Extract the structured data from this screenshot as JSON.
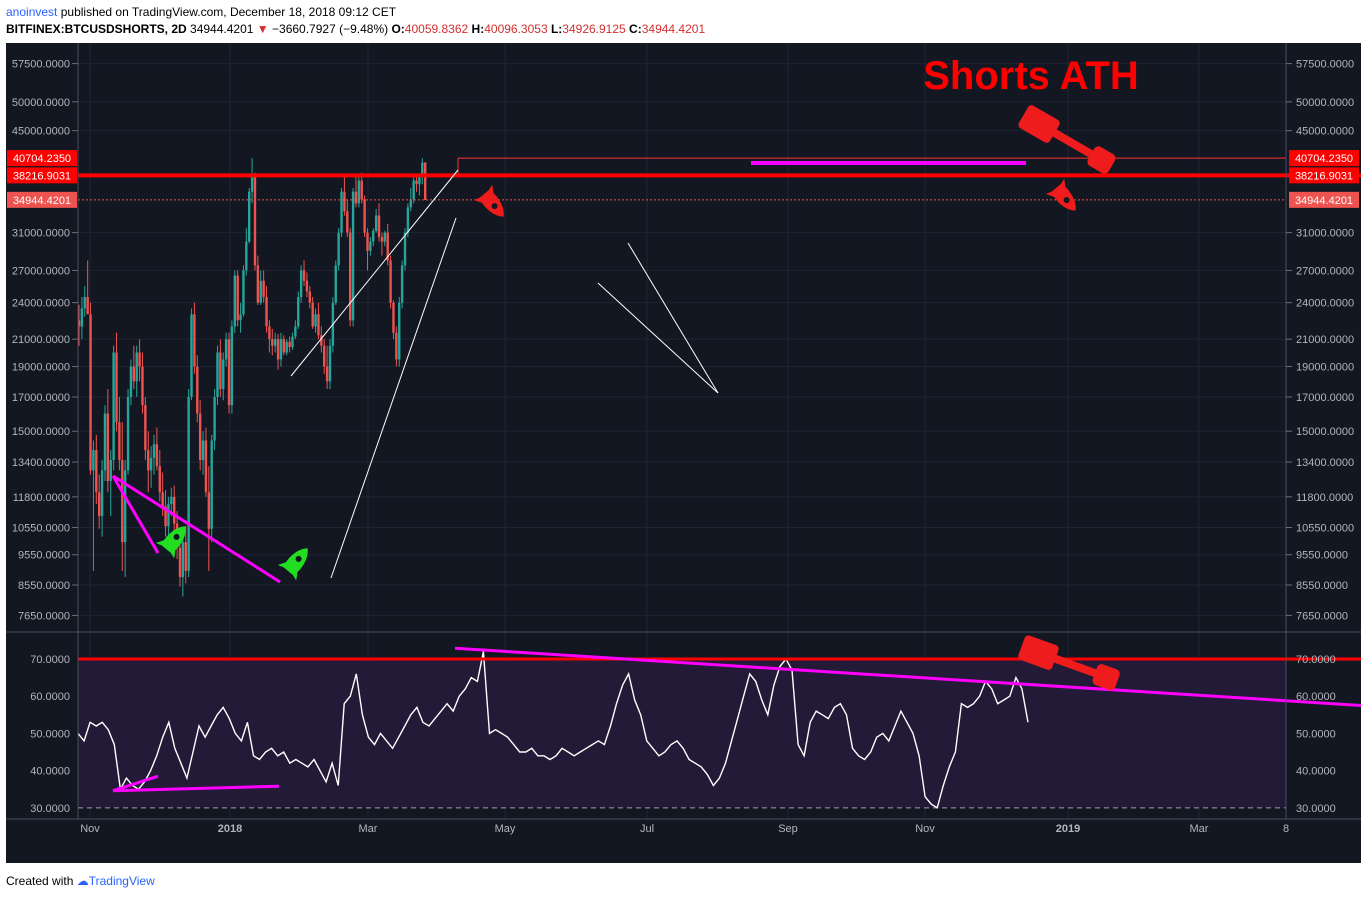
{
  "header": {
    "author": "anoinvest",
    "published": "published on TradingView.com, December 18, 2018 09:12 CET",
    "symbol": "BITFINEX:BTCUSDSHORTS, 2D",
    "last": "34944.4201",
    "change": "−3660.7927 (−9.48%)",
    "open_label": "O:",
    "open": "40059.8362",
    "high_label": "H:",
    "high": "40096.3053",
    "low_label": "L:",
    "low": "34926.9125",
    "close_label": "C:",
    "close": "34944.4201"
  },
  "footer": {
    "created_with": "Created with",
    "brand": "TradingView"
  },
  "colors": {
    "background": "#131722",
    "rsi_band": "#221a36",
    "up": "#26a69a",
    "down": "#ef5350",
    "annotation_red": "#ff0000",
    "annotation_magenta": "#ff00ff",
    "rocket_green": "#22dd22",
    "rsi_line": "#ffffff"
  },
  "chart_data": [
    {
      "type": "candlestick",
      "title": "BTCUSDSHORTS 2D",
      "y_axis_ticks": [
        7650,
        8550,
        9550,
        10550,
        11800,
        13400,
        15000,
        17000,
        19000,
        21000,
        24000,
        27000,
        31000,
        34944.4201,
        38216.9031,
        40704.235,
        45000,
        50000,
        57500
      ],
      "y_tick_labels": [
        "7650.0000",
        "8550.0000",
        "9550.0000",
        "10550.0000",
        "11800.0000",
        "13400.0000",
        "15000.0000",
        "17000.0000",
        "19000.0000",
        "21000.0000",
        "24000.0000",
        "27000.0000",
        "31000.0000",
        "34944.4201",
        "38216.9031",
        "40704.2350",
        "45000.0000",
        "50000.0000",
        "57500.0000"
      ],
      "y_scale": "log",
      "ylim": [
        7200,
        62000
      ],
      "x_tick_labels": [
        "Nov",
        "2018",
        "Mar",
        "May",
        "Jul",
        "Sep",
        "Nov",
        "2019",
        "Mar",
        "8"
      ],
      "series": [
        {
          "values": [
            [
              22500,
              23800,
              20500,
              22000
            ],
            [
              22000,
              24500,
              21000,
              23500
            ],
            [
              23500,
              25500,
              22800,
              24500
            ],
            [
              24500,
              28000,
              23000,
              23000
            ],
            [
              23000,
              24000,
              12800,
              13000
            ],
            [
              13000,
              14500,
              9000,
              14000
            ],
            [
              14000,
              14800,
              11500,
              12000
            ],
            [
              12000,
              12800,
              10500,
              11000
            ],
            [
              11000,
              13500,
              10200,
              13000
            ],
            [
              13000,
              16500,
              12500,
              16000
            ],
            [
              16000,
              17500,
              12000,
              12500
            ],
            [
              12500,
              14000,
              11000,
              13500
            ],
            [
              13500,
              20500,
              13000,
              20000
            ],
            [
              20000,
              21500,
              15000,
              15500
            ],
            [
              15500,
              17000,
              13000,
              13500
            ],
            [
              13500,
              15500,
              9000,
              10000
            ],
            [
              10000,
              13500,
              8800,
              13000
            ],
            [
              13000,
              17500,
              12800,
              17000
            ],
            [
              17000,
              19500,
              16500,
              19000
            ],
            [
              19000,
              20500,
              17500,
              18000
            ],
            [
              18000,
              20500,
              17000,
              20000
            ],
            [
              20000,
              21000,
              18000,
              19000
            ],
            [
              19000,
              20000,
              16000,
              16500
            ],
            [
              16500,
              17000,
              13500,
              14000
            ],
            [
              14000,
              15000,
              12000,
              13000
            ],
            [
              13000,
              14200,
              12200,
              13600
            ],
            [
              13600,
              14800,
              12800,
              14300
            ],
            [
              14300,
              15200,
              13000,
              13200
            ],
            [
              13200,
              14000,
              11600,
              12000
            ],
            [
              12000,
              12900,
              11000,
              11400
            ],
            [
              11400,
              12100,
              10200,
              10600
            ],
            [
              10600,
              11800,
              10000,
              11500
            ],
            [
              11500,
              12200,
              11000,
              11800
            ],
            [
              11800,
              12300,
              10400,
              10700
            ],
            [
              10700,
              11200,
              9400,
              9800
            ],
            [
              9800,
              10500,
              8500,
              8800
            ],
            [
              8800,
              10200,
              8200,
              10000
            ],
            [
              10000,
              10600,
              8600,
              9000
            ],
            [
              9000,
              17500,
              8800,
              17000
            ],
            [
              17000,
              23500,
              16800,
              23000
            ],
            [
              23000,
              24000,
              18500,
              19000
            ],
            [
              19000,
              19800,
              15500,
              16000
            ],
            [
              16000,
              16800,
              13000,
              13500
            ],
            [
              13500,
              15000,
              12800,
              14500
            ],
            [
              14500,
              15200,
              11800,
              12000
            ],
            [
              12000,
              13200,
              9000,
              10500
            ],
            [
              10500,
              14800,
              10000,
              14500
            ],
            [
              14500,
              17500,
              14000,
              17000
            ],
            [
              17000,
              20500,
              16500,
              20000
            ],
            [
              20000,
              21000,
              17000,
              17500
            ],
            [
              17500,
              20000,
              16800,
              19500
            ],
            [
              19500,
              21500,
              19000,
              21000
            ],
            [
              21000,
              21500,
              16000,
              16500
            ],
            [
              16500,
              22500,
              16000,
              22000
            ],
            [
              22000,
              27000,
              21500,
              26500
            ],
            [
              26500,
              27000,
              22000,
              22500
            ],
            [
              22500,
              24000,
              21500,
              23000
            ],
            [
              23000,
              27500,
              22800,
              27000
            ],
            [
              27000,
              31500,
              26500,
              30000
            ],
            [
              30000,
              36500,
              29800,
              36000
            ],
            [
              36000,
              40700,
              34500,
              38216
            ],
            [
              38216,
              38600,
              27000,
              27500
            ],
            [
              27500,
              28500,
              23800,
              24000
            ],
            [
              24000,
              27000,
              23800,
              26000
            ],
            [
              26000,
              27000,
              24000,
              24500
            ],
            [
              24500,
              25500,
              21500,
              22000
            ],
            [
              22000,
              22500,
              20000,
              21000
            ],
            [
              21000,
              21800,
              19800,
              20500
            ],
            [
              20500,
              21500,
              20000,
              21000
            ],
            [
              21000,
              21400,
              18800,
              19500
            ],
            [
              19500,
              21500,
              19000,
              21000
            ],
            [
              21000,
              21300,
              19800,
              20000
            ],
            [
              20000,
              21000,
              19800,
              20800
            ],
            [
              20800,
              21200,
              20000,
              20400
            ],
            [
              20400,
              21500,
              20200,
              21200
            ],
            [
              21200,
              22500,
              21000,
              22000
            ],
            [
              22000,
              25000,
              21800,
              24500
            ],
            [
              24500,
              27500,
              24000,
              27000
            ],
            [
              27000,
              28000,
              25500,
              26000
            ],
            [
              26000,
              26800,
              24500,
              25000
            ],
            [
              25000,
              25500,
              23500,
              24000
            ],
            [
              24000,
              24500,
              21800,
              22000
            ],
            [
              22000,
              23500,
              21500,
              23000
            ],
            [
              23000,
              24000,
              21000,
              21300
            ],
            [
              21300,
              22000,
              20000,
              20500
            ],
            [
              20500,
              21000,
              18500,
              19000
            ],
            [
              19000,
              20500,
              17500,
              18000
            ],
            [
              18000,
              21000,
              17500,
              20500
            ],
            [
              20500,
              24500,
              20000,
              24000
            ],
            [
              24000,
              28000,
              23800,
              27500
            ],
            [
              27500,
              31500,
              27000,
              31000
            ],
            [
              31000,
              36500,
              30500,
              36000
            ],
            [
              36000,
              38200,
              33000,
              33500
            ],
            [
              33500,
              35000,
              30500,
              31000
            ],
            [
              31000,
              31500,
              22000,
              22500
            ],
            [
              22500,
              36500,
              22000,
              36000
            ],
            [
              36000,
              38500,
              34000,
              34500
            ],
            [
              34500,
              38400,
              34000,
              37500
            ],
            [
              37500,
              38600,
              34500,
              35000
            ],
            [
              35000,
              35500,
              30500,
              31000
            ],
            [
              31000,
              31500,
              27000,
              29000
            ],
            [
              29000,
              30500,
              28500,
              30000
            ],
            [
              30000,
              31500,
              29500,
              31200
            ],
            [
              31200,
              33800,
              31000,
              33000
            ],
            [
              33000,
              34500,
              30000,
              30500
            ],
            [
              30500,
              31000,
              28500,
              30000
            ],
            [
              30000,
              31200,
              29500,
              31000
            ],
            [
              31000,
              32000,
              27500,
              28000
            ],
            [
              28000,
              28500,
              23500,
              24000
            ],
            [
              24000,
              24200,
              21000,
              21500
            ],
            [
              21500,
              22000,
              19000,
              19500
            ],
            [
              19500,
              24500,
              19000,
              24000
            ],
            [
              24000,
              28000,
              23500,
              27500
            ],
            [
              27500,
              31500,
              27000,
              31000
            ],
            [
              31000,
              34500,
              30500,
              34000
            ],
            [
              34000,
              36500,
              33500,
              35000
            ],
            [
              35000,
              38200,
              34500,
              37500
            ],
            [
              37500,
              38200,
              36000,
              37000
            ],
            [
              37000,
              38500,
              35500,
              38100
            ],
            [
              38100,
              40704,
              37000,
              40059
            ],
            [
              40059,
              40096,
              34926,
              34944
            ]
          ]
        }
      ]
    },
    {
      "type": "line",
      "title": "RSI",
      "y_axis_ticks": [
        30,
        40,
        50,
        60,
        70
      ],
      "y_tick_labels": [
        "30.0000",
        "40.0000",
        "50.0000",
        "60.0000",
        "70.0000"
      ],
      "ylim": [
        27,
        77
      ],
      "series": [
        {
          "values": [
            50,
            48,
            53,
            52,
            53,
            51,
            47,
            35,
            38,
            36,
            35,
            37,
            40,
            44,
            49,
            53,
            46,
            42,
            38,
            45,
            52,
            49,
            52,
            55,
            57,
            54,
            50,
            48,
            53,
            44,
            43,
            45,
            46,
            44,
            45,
            42,
            43,
            42,
            41,
            43,
            40,
            37,
            42,
            36,
            58,
            60,
            66,
            55,
            49,
            47,
            50,
            48,
            46,
            49,
            52,
            55,
            57,
            53,
            52,
            54,
            56,
            58,
            56,
            60,
            62,
            65,
            64,
            72,
            50,
            51,
            50,
            49,
            47,
            45,
            45,
            46,
            44,
            44,
            43,
            44,
            46,
            45,
            44,
            45,
            46,
            47,
            48,
            47,
            52,
            58,
            63,
            66,
            59,
            55,
            48,
            46,
            44,
            45,
            47,
            48,
            46,
            43,
            42,
            41,
            39,
            36,
            38,
            42,
            48,
            54,
            60,
            66,
            64,
            59,
            55,
            63,
            68,
            70,
            67,
            47,
            44,
            53,
            56,
            55,
            54,
            57,
            58,
            55,
            46,
            44,
            43,
            45,
            49,
            50,
            48,
            52,
            56,
            53,
            50,
            44,
            33,
            31,
            30,
            36,
            41,
            45,
            58,
            57,
            58,
            60,
            64,
            62,
            58,
            59,
            60,
            65,
            62,
            53
          ]
        }
      ]
    }
  ],
  "annotations": {
    "title_text": "Shorts ATH",
    "rsi_level": 70
  }
}
